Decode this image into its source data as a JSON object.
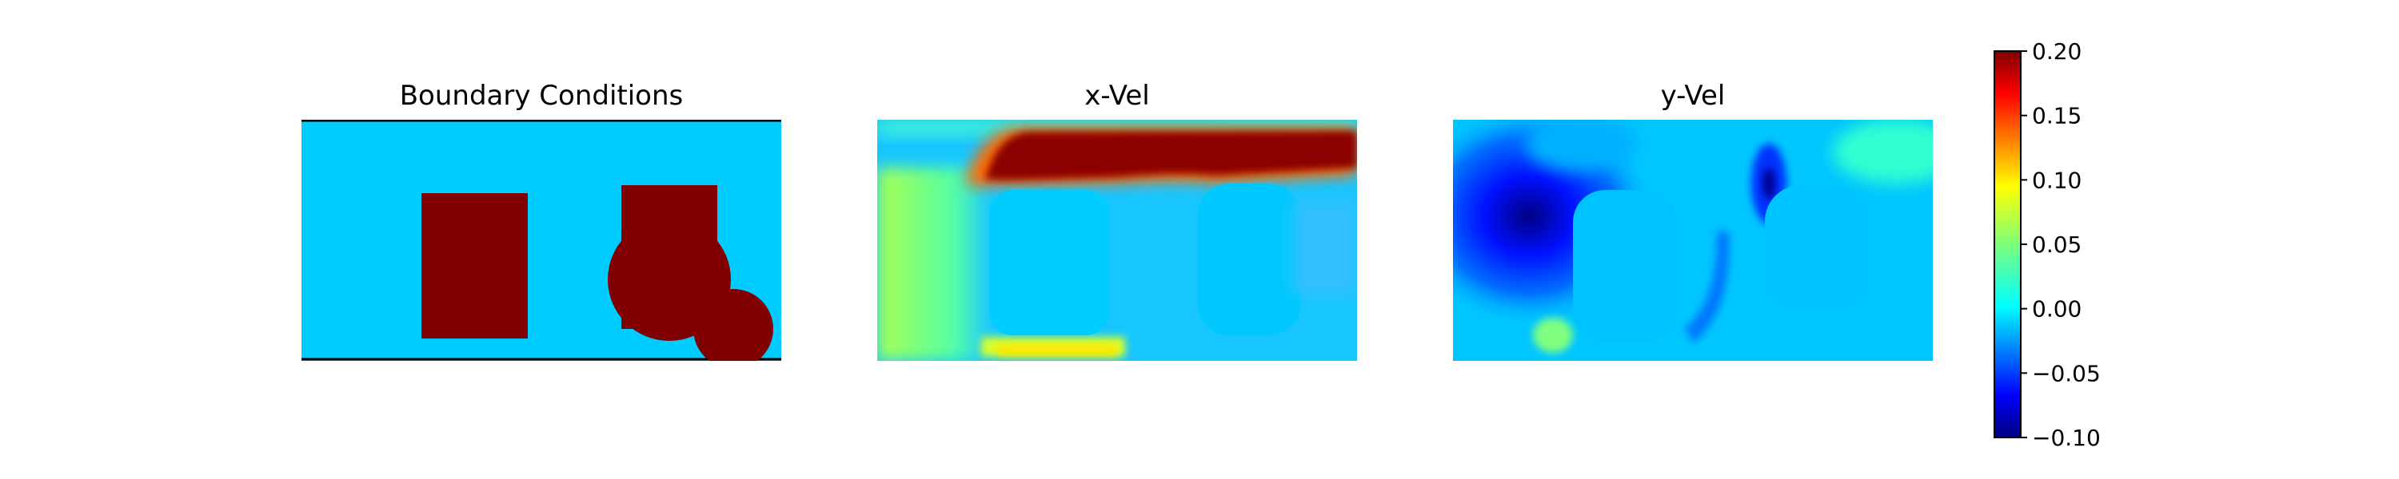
{
  "chart_data": {
    "type": "heatmap",
    "panels": [
      {
        "title": "Boundary Conditions"
      },
      {
        "title": "x-Vel"
      },
      {
        "title": "y-Vel"
      }
    ],
    "colorbar": {
      "colormap": "jet",
      "range": [
        -0.1,
        0.2
      ],
      "ticks": [
        {
          "value": 0.2,
          "label": "0.20"
        },
        {
          "value": 0.15,
          "label": "0.15"
        },
        {
          "value": 0.1,
          "label": "0.10"
        },
        {
          "value": 0.05,
          "label": "0.05"
        },
        {
          "value": 0.0,
          "label": "0.00"
        },
        {
          "value": -0.05,
          "label": "−0.05"
        },
        {
          "value": -0.1,
          "label": "−0.10"
        }
      ]
    }
  },
  "colors": {
    "boundary_fluid": "#00ccff",
    "boundary_solid": "#800000"
  }
}
